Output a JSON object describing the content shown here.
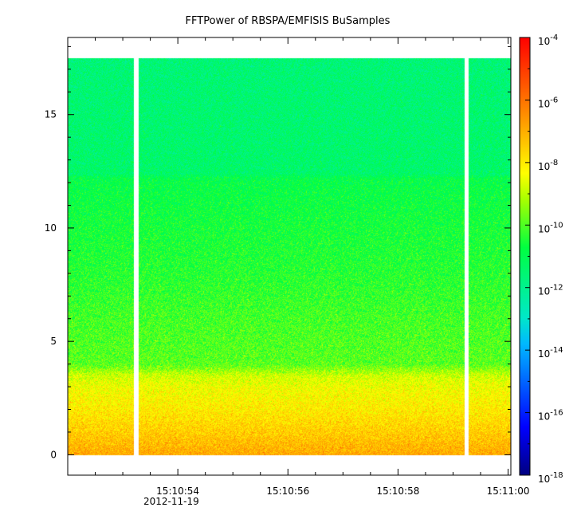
{
  "chart_data": {
    "type": "heatmap",
    "title": "FFTPower of RBSPA/EMFISIS  BuSamples",
    "xlabel": "",
    "ylabel": "",
    "date_label": "2012-11-19",
    "x_ticks": [
      "15:10:54",
      "15:10:56",
      "15:10:58",
      "15:11:00"
    ],
    "x_tick_values_s": [
      54,
      56,
      58,
      60
    ],
    "xlim_s": [
      52.0,
      60.05
    ],
    "y_ticks": [
      "0",
      "5",
      "10",
      "15"
    ],
    "y_tick_values": [
      0,
      5,
      10,
      15
    ],
    "ylim": [
      -0.9,
      18.4
    ],
    "data_ylim": [
      0,
      17.5
    ],
    "data_gaps_s": [
      [
        53.2,
        53.28
      ],
      [
        59.2,
        59.28
      ]
    ],
    "colorbar": {
      "scale": "log",
      "range": [
        1e-18,
        0.0001
      ],
      "tick_labels": [
        {
          "base": "10",
          "exp": "-4"
        },
        {
          "base": "10",
          "exp": "-6"
        },
        {
          "base": "10",
          "exp": "-8"
        },
        {
          "base": "10",
          "exp": "-10"
        },
        {
          "base": "10",
          "exp": "-12"
        },
        {
          "base": "10",
          "exp": "-14"
        },
        {
          "base": "10",
          "exp": "-16"
        },
        {
          "base": "10",
          "exp": "-18"
        }
      ],
      "tick_log_values": [
        -4,
        -6,
        -8,
        -10,
        -12,
        -14,
        -16,
        -18
      ]
    },
    "power_profile_log10": [
      {
        "y": 0.0,
        "log_power": -6.9
      },
      {
        "y": 0.5,
        "log_power": -7.2
      },
      {
        "y": 1.0,
        "log_power": -7.5
      },
      {
        "y": 2.0,
        "log_power": -8.0
      },
      {
        "y": 3.0,
        "log_power": -8.4
      },
      {
        "y": 3.5,
        "log_power": -8.8
      },
      {
        "y": 4.0,
        "log_power": -9.9
      },
      {
        "y": 6.0,
        "log_power": -10.1
      },
      {
        "y": 8.0,
        "log_power": -10.4
      },
      {
        "y": 10.0,
        "log_power": -10.6
      },
      {
        "y": 12.2,
        "log_power": -10.9
      },
      {
        "y": 12.4,
        "log_power": -11.4
      },
      {
        "y": 15.0,
        "log_power": -11.5
      },
      {
        "y": 17.5,
        "log_power": -11.6
      }
    ]
  }
}
